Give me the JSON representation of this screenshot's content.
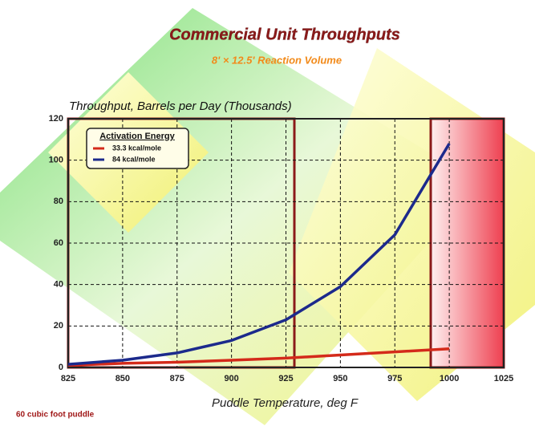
{
  "chart_data": {
    "type": "line",
    "title": "Commercial Unit Throughputs",
    "subtitle": "8' × 12.5' Reaction Volume",
    "y_label": "Throughput, Barrels per Day (Thousands)",
    "x_label": "Puddle Temperature, deg F",
    "footnote": "60 cubic foot puddle",
    "legend_title": "Activation Energy",
    "legend": "upper-left",
    "grid": true,
    "x": [
      825,
      850,
      875,
      900,
      925,
      950,
      975,
      1000
    ],
    "series": [
      {
        "name": "33.3 kcal/mole",
        "color": "#d42a1a",
        "values": [
          1,
          2,
          2.5,
          3.5,
          4.5,
          6,
          7.5,
          9
        ]
      },
      {
        "name": "84 kcal/mole",
        "color": "#1c2a8c",
        "values": [
          1.5,
          3.5,
          7,
          13,
          23,
          39,
          64,
          108
        ]
      }
    ],
    "xlim": [
      825,
      1025
    ],
    "xticks": [
      825,
      850,
      875,
      900,
      925,
      950,
      975,
      1000,
      1025
    ],
    "ylim": [
      0,
      120
    ],
    "yticks": [
      0,
      20,
      40,
      60,
      80,
      100,
      120
    ]
  }
}
